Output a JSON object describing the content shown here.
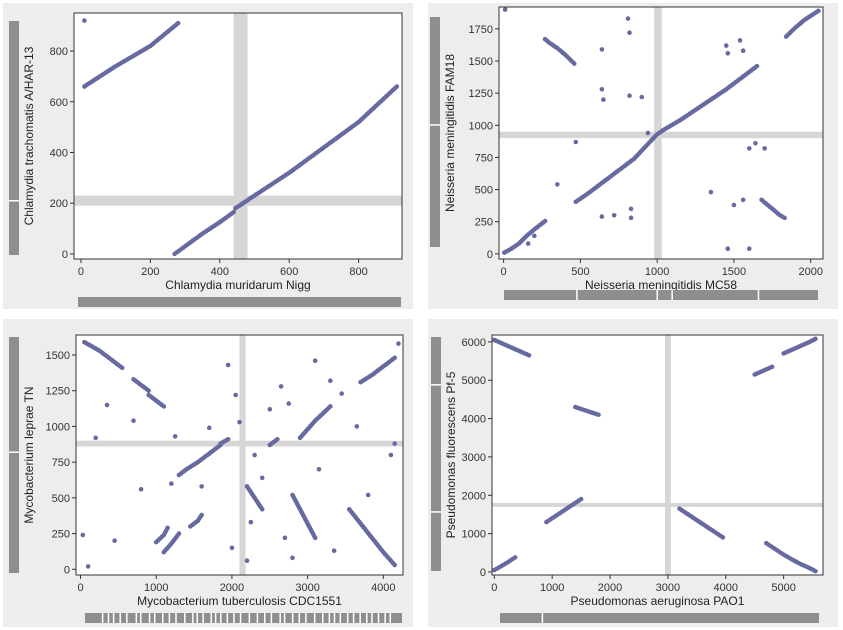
{
  "colors": {
    "point": "#676aa0",
    "highlight": "#d6d6d6",
    "panel_bg": "#ededed",
    "plot_bg": "#ffffff",
    "track_bar": "#8e8e8e",
    "frame": "#333333"
  },
  "chart_data": [
    {
      "type": "scatter",
      "xlabel": "Chlamydia muridarum Nigg",
      "ylabel": "Chlamydia trachomatis A/HAR-13",
      "xlim": [
        -20,
        925
      ],
      "ylim": [
        -20,
        950
      ],
      "xticks": [
        0,
        200,
        400,
        600,
        800
      ],
      "yticks": [
        0,
        200,
        400,
        600,
        800
      ],
      "highlight": {
        "x": [
          440,
          480
        ],
        "y": [
          190,
          230
        ]
      },
      "x_track_breaks": [],
      "y_track_breaks": [
        205
      ],
      "series": [
        {
          "x": [
            10,
            15,
            100,
            200,
            280
          ],
          "y": [
            660,
            665,
            740,
            820,
            910
          ]
        },
        {
          "x": [
            10
          ],
          "y": [
            920
          ]
        },
        {
          "x": [
            270,
            300,
            350,
            400,
            440
          ],
          "y": [
            0,
            30,
            80,
            125,
            165
          ]
        },
        {
          "x": [
            445,
            500,
            600,
            700,
            800,
            910
          ],
          "y": [
            180,
            230,
            320,
            420,
            520,
            660
          ]
        }
      ]
    },
    {
      "type": "scatter",
      "xlabel": "Neisseria meningitidis MC58",
      "ylabel": "Neisseria meningitidis FAM18",
      "xlim": [
        -30,
        2080
      ],
      "ylim": [
        -40,
        1920
      ],
      "xticks": [
        0,
        500,
        1000,
        1500,
        2000
      ],
      "yticks": [
        0,
        250,
        500,
        750,
        1000,
        1250,
        1500,
        1750
      ],
      "highlight": {
        "x": [
          980,
          1030
        ],
        "y": [
          900,
          950
        ]
      },
      "x_track_breaks": [
        460,
        1000,
        1100,
        1680
      ],
      "y_track_breaks": [
        1000
      ],
      "series": [
        {
          "x": [
            5,
            50,
            100,
            150,
            200,
            270
          ],
          "y": [
            10,
            40,
            80,
            140,
            190,
            255
          ]
        },
        {
          "x": [
            270,
            300,
            350,
            400,
            460
          ],
          "y": [
            1670,
            1640,
            1600,
            1550,
            1480
          ]
        },
        {
          "x": [
            470,
            550,
            650,
            750,
            850,
            960,
            1000,
            1050,
            1150,
            1250,
            1350,
            1450,
            1550,
            1650
          ],
          "y": [
            405,
            470,
            560,
            650,
            740,
            880,
            930,
            970,
            1040,
            1120,
            1200,
            1280,
            1370,
            1460
          ]
        },
        {
          "x": [
            1680,
            1720,
            1760,
            1800,
            1830
          ],
          "y": [
            420,
            380,
            340,
            300,
            280
          ]
        },
        {
          "x": [
            1840,
            1900,
            1960,
            2050
          ],
          "y": [
            1690,
            1760,
            1820,
            1890
          ]
        },
        {
          "x": [
            10,
            160,
            200,
            350,
            470,
            640,
            640,
            640,
            650,
            720,
            810,
            820,
            820,
            830,
            830,
            900,
            940,
            1350,
            1450,
            1460,
            1460,
            1500,
            1540,
            1560,
            1560,
            1600,
            1600,
            1640,
            1700
          ],
          "y": [
            1900,
            80,
            140,
            540,
            870,
            1590,
            1280,
            290,
            1200,
            300,
            1830,
            1720,
            1230,
            350,
            280,
            1220,
            940,
            480,
            1620,
            1560,
            40,
            380,
            1660,
            1580,
            420,
            40,
            820,
            860,
            820
          ]
        }
      ]
    },
    {
      "type": "scatter",
      "xlabel": "Mycobacterium tuberculosis CDC1551",
      "ylabel": "Mycobacterium leprae TN",
      "xlim": [
        -60,
        4260
      ],
      "ylim": [
        -40,
        1640
      ],
      "xticks": [
        0,
        1000,
        2000,
        3000,
        4000
      ],
      "yticks": [
        0,
        250,
        500,
        750,
        1000,
        1250,
        1500
      ],
      "highlight": {
        "x": [
          2100,
          2180
        ],
        "y": [
          860,
          900
        ]
      },
      "x_track_breaks": [
        180,
        260,
        330,
        420,
        510,
        640,
        700,
        820,
        890,
        1000,
        1090,
        1180,
        1300,
        1410,
        1470,
        1550,
        1660,
        1720,
        1790,
        1880,
        1970,
        2060,
        2180,
        2290,
        2390,
        2480,
        2600,
        2660,
        2770,
        2860,
        2950,
        3070,
        3180,
        3270,
        3340,
        3420,
        3520,
        3600,
        3690,
        3780,
        3850,
        3940,
        4030,
        4100
      ],
      "y_track_breaks": [
        820
      ],
      "series": [
        {
          "x": [
            50,
            150,
            250,
            350,
            450,
            550
          ],
          "y": [
            1590,
            1560,
            1530,
            1490,
            1450,
            1410
          ]
        },
        {
          "x": [
            700,
            800,
            900
          ],
          "y": [
            1330,
            1290,
            1250
          ]
        },
        {
          "x": [
            900,
            1000,
            1100
          ],
          "y": [
            1220,
            1180,
            1140
          ]
        },
        {
          "x": [
            1100,
            1200,
            1300
          ],
          "y": [
            120,
            180,
            250
          ]
        },
        {
          "x": [
            1300,
            1400,
            1550,
            1650,
            1750,
            1850
          ],
          "y": [
            660,
            700,
            750,
            790,
            830,
            870
          ]
        },
        {
          "x": [
            1850,
            1950
          ],
          "y": [
            880,
            910
          ]
        },
        {
          "x": [
            2500,
            2600
          ],
          "y": [
            870,
            910
          ]
        },
        {
          "x": [
            2900,
            3000,
            3100,
            3200,
            3300
          ],
          "y": [
            920,
            980,
            1040,
            1090,
            1140
          ]
        },
        {
          "x": [
            3700,
            3850,
            4000,
            4150
          ],
          "y": [
            1310,
            1360,
            1420,
            1480
          ]
        },
        {
          "x": [
            3550,
            3700,
            3850,
            4000,
            4150
          ],
          "y": [
            420,
            320,
            220,
            120,
            30
          ]
        },
        {
          "x": [
            2200,
            2300,
            2400
          ],
          "y": [
            580,
            500,
            420
          ]
        },
        {
          "x": [
            2800,
            2900,
            3000,
            3100
          ],
          "y": [
            520,
            420,
            320,
            220
          ]
        },
        {
          "x": [
            1450,
            1550,
            1600
          ],
          "y": [
            300,
            340,
            380
          ]
        },
        {
          "x": [
            1000,
            1100,
            1150
          ],
          "y": [
            190,
            240,
            290
          ]
        },
        {
          "x": [
            30,
            100,
            200,
            350,
            450,
            700,
            800,
            1200,
            1250,
            1600,
            1700,
            1950,
            2000,
            2050,
            2100,
            2200,
            2250,
            2300,
            2400,
            2500,
            2650,
            2700,
            2750,
            2800,
            3100,
            3150,
            3300,
            3350,
            3450,
            3650,
            3800,
            4100,
            4150,
            4200
          ],
          "y": [
            240,
            20,
            920,
            1150,
            200,
            1040,
            560,
            600,
            930,
            580,
            990,
            1430,
            150,
            1220,
            1030,
            60,
            330,
            800,
            640,
            1120,
            1280,
            220,
            1160,
            80,
            1460,
            700,
            1320,
            130,
            1230,
            1000,
            520,
            800,
            880,
            1580
          ]
        }
      ]
    },
    {
      "type": "scatter",
      "xlabel": "Pseudomonas aeruginosa PAO1",
      "ylabel": "Pseudomonas fluorescens Pf-5",
      "xlim": [
        -40,
        5680
      ],
      "ylim": [
        -80,
        6180
      ],
      "xticks": [
        0,
        1000,
        2000,
        3000,
        4000,
        5000
      ],
      "yticks": [
        0,
        1000,
        2000,
        3000,
        4000,
        5000,
        6000
      ],
      "highlight": {
        "x": [
          2950,
          3050
        ],
        "y": [
          1700,
          1800
        ]
      },
      "x_track_breaks": [
        720
      ],
      "y_track_breaks": [
        1500,
        4900
      ],
      "series": [
        {
          "x": [
            0,
            150,
            300,
            450,
            600
          ],
          "y": [
            6050,
            5950,
            5850,
            5750,
            5650
          ]
        },
        {
          "x": [
            5000,
            5150,
            5300,
            5450,
            5550
          ],
          "y": [
            5700,
            5800,
            5900,
            6000,
            6080
          ]
        },
        {
          "x": [
            4700,
            4850,
            5000,
            5150,
            5300,
            5450,
            5550
          ],
          "y": [
            750,
            600,
            450,
            320,
            200,
            100,
            20
          ]
        },
        {
          "x": [
            0,
            120,
            240,
            360
          ],
          "y": [
            50,
            150,
            260,
            380
          ]
        },
        {
          "x": [
            900,
            1050,
            1200,
            1350,
            1500
          ],
          "y": [
            1300,
            1450,
            1600,
            1750,
            1900
          ]
        },
        {
          "x": [
            3200,
            3400,
            3600,
            3800,
            3950
          ],
          "y": [
            1650,
            1450,
            1250,
            1050,
            900
          ]
        },
        {
          "x": [
            4500,
            4650,
            4800
          ],
          "y": [
            5150,
            5250,
            5350
          ]
        },
        {
          "x": [
            1400,
            1600,
            1800
          ],
          "y": [
            4300,
            4200,
            4100
          ]
        }
      ]
    }
  ]
}
